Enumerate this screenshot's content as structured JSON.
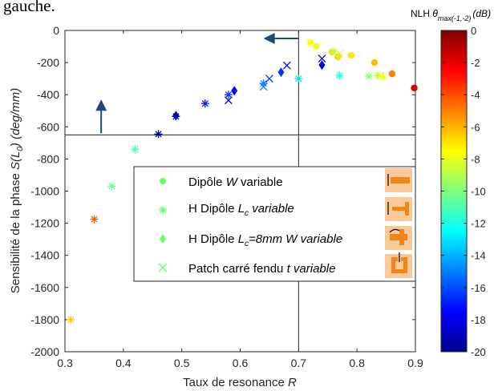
{
  "header_fragment": "gauche.",
  "chart_data": {
    "type": "scatter",
    "title": "",
    "xlabel": "Taux de resonance",
    "xlabel_var": "R",
    "ylabel": "Sensibilité de la phase",
    "ylabel_var": "S(L",
    "ylabel_sub": "0",
    "ylabel_tail": ") (deg/mm)",
    "xlim": [
      0.3,
      0.9
    ],
    "ylim": [
      -2000,
      0
    ],
    "xticks": [
      0.3,
      0.4,
      0.5,
      0.6,
      0.7,
      0.8,
      0.9
    ],
    "xtick_labels": [
      "0.3",
      "0.4",
      "0.5",
      "0.6",
      "0.7",
      "0.8",
      "0.9"
    ],
    "yticks": [
      0,
      -200,
      -400,
      -600,
      -800,
      -1000,
      -1200,
      -1400,
      -1600,
      -1800,
      -2000
    ],
    "ytick_labels": [
      "0",
      "-200",
      "-400",
      "-600",
      "-800",
      "-1000",
      "-1200",
      "-1400",
      "-1600",
      "-1800",
      "-2000"
    ],
    "grid": false,
    "legend_position": "center",
    "reference_lines": {
      "x": 0.7,
      "y": -650
    },
    "arrows": [
      {
        "direction": "up",
        "x": 0.362,
        "from": -640,
        "to": -430
      },
      {
        "direction": "left",
        "y": -50,
        "from": 0.7,
        "to": 0.64
      }
    ],
    "colorbar": {
      "title_prefix": "NLH",
      "title_symbol": "θ",
      "title_sub": "max(-1,-2)",
      "title_unit": "(dB)",
      "min": -20,
      "max": 0,
      "ticks": [
        0,
        -2,
        -4,
        -6,
        -8,
        -10,
        -12,
        -14,
        -16,
        -18,
        -20
      ],
      "tick_labels": [
        "0",
        "-2",
        "-4",
        "-6",
        "-8",
        "-10",
        "-12",
        "-14",
        "-16",
        "-18",
        "-20"
      ]
    },
    "series": [
      {
        "name": "Dipôle W variable",
        "label_plain": "Dipôle ",
        "label_var": "W",
        "label_tail": " variable",
        "marker": "circle",
        "legend_color": "#66ff66",
        "points": [
          {
            "x": 0.72,
            "y": -75,
            "c": -7.5
          },
          {
            "x": 0.73,
            "y": -100,
            "c": -7.8
          },
          {
            "x": 0.757,
            "y": -135,
            "c": -7.0
          },
          {
            "x": 0.767,
            "y": -165,
            "c": -6.8
          },
          {
            "x": 0.79,
            "y": -155,
            "c": -7.1
          },
          {
            "x": 0.83,
            "y": -200,
            "c": -6.2
          },
          {
            "x": 0.86,
            "y": -270,
            "c": -5.0
          },
          {
            "x": 0.898,
            "y": -358,
            "c": -2.0
          }
        ]
      },
      {
        "name": "H Dipôle Lc variable",
        "label_plain": "H Dipôle ",
        "label_var": "L",
        "label_sub": "c",
        "label_tail": " variable",
        "marker": "asterisk",
        "legend_color": "#66ff66",
        "points": [
          {
            "x": 0.31,
            "y": -1800,
            "c": -6.5
          },
          {
            "x": 0.35,
            "y": -1175,
            "c": -4.3
          },
          {
            "x": 0.38,
            "y": -970,
            "c": -10.5
          },
          {
            "x": 0.42,
            "y": -740,
            "c": -11.0
          },
          {
            "x": 0.46,
            "y": -645,
            "c": -19.5
          },
          {
            "x": 0.49,
            "y": -535,
            "c": -18.5
          },
          {
            "x": 0.54,
            "y": -455,
            "c": -17.0
          },
          {
            "x": 0.58,
            "y": -400,
            "c": -16.5
          },
          {
            "x": 0.64,
            "y": -330,
            "c": -15.0
          },
          {
            "x": 0.7,
            "y": -300,
            "c": -13.0
          },
          {
            "x": 0.76,
            "y": -130,
            "c": -9.0
          },
          {
            "x": 0.77,
            "y": -280,
            "c": -12.0
          },
          {
            "x": 0.82,
            "y": -285,
            "c": -9.8
          },
          {
            "x": 0.835,
            "y": -280,
            "c": -8.8
          },
          {
            "x": 0.845,
            "y": -290,
            "c": -7.8
          }
        ]
      },
      {
        "name": "H Dipôle Lc=8mm W variable",
        "label_plain": "H Dipôle ",
        "label_var": "L",
        "label_sub": "c",
        "label_tail": "=8mm W variable",
        "marker": "diamond",
        "legend_color": "#66ff66",
        "points": [
          {
            "x": 0.49,
            "y": -530,
            "c": -19.0
          },
          {
            "x": 0.59,
            "y": -375,
            "c": -17.5
          },
          {
            "x": 0.67,
            "y": -260,
            "c": -16.5
          },
          {
            "x": 0.74,
            "y": -215,
            "c": -18.5
          }
        ]
      },
      {
        "name": "Patch carré fendu t variable",
        "label_plain": "Patch carré fendu ",
        "label_var": "t",
        "label_tail": " variable",
        "marker": "x",
        "legend_color": "#66ff66",
        "points": [
          {
            "x": 0.58,
            "y": -435,
            "c": -18.5
          },
          {
            "x": 0.64,
            "y": -350,
            "c": -15.0
          },
          {
            "x": 0.65,
            "y": -300,
            "c": -16.5
          },
          {
            "x": 0.68,
            "y": -218,
            "c": -17.5
          },
          {
            "x": 0.74,
            "y": -175,
            "c": -18.0
          },
          {
            "x": 0.77,
            "y": -145,
            "c": -8.5
          },
          {
            "x": 0.84,
            "y": -280,
            "c": -8.0
          }
        ]
      }
    ]
  }
}
